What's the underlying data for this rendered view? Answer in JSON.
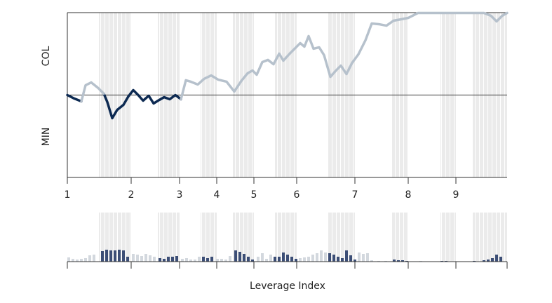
{
  "chart_data": [
    {
      "type": "line",
      "ylabel_top": "COL",
      "ylabel_bottom": "MIN",
      "x": [
        0,
        10,
        20,
        26,
        34,
        44,
        52,
        57,
        64,
        71,
        80,
        87,
        94,
        101,
        108,
        116,
        123,
        131,
        138,
        146,
        154,
        162,
        169,
        176,
        186,
        195,
        205,
        215,
        227,
        238,
        248,
        257,
        264,
        270,
        278,
        286,
        294,
        302,
        308,
        317,
        324,
        332,
        338,
        344,
        351,
        359,
        366,
        375,
        383,
        390,
        398,
        406,
        415,
        425,
        434,
        444,
        455,
        465,
        476,
        486,
        500,
        524,
        554,
        594,
        604,
        612,
        620,
        627
      ],
      "series": [
        {
          "color": "#0d2a52",
          "values": [
            0,
            -4.3,
            -7.7,
            null,
            null,
            null,
            1.7,
            -8.5,
            -28.1,
            -18.1,
            -11.9,
            -1.7,
            6.0,
            0,
            -6.8,
            -0.9,
            -10.2,
            -6.0,
            -2.6,
            -5.1,
            0,
            -5.1,
            null,
            null,
            null,
            null,
            null,
            null,
            null,
            null,
            null,
            null,
            null,
            null,
            null,
            null,
            null,
            null,
            null,
            null,
            null,
            null,
            null,
            null,
            null,
            null,
            null,
            null,
            null,
            null,
            null,
            null,
            null,
            null,
            null,
            null,
            null,
            null,
            null,
            null,
            null,
            null,
            null,
            null,
            null,
            null,
            null,
            null
          ]
        },
        {
          "color": "#b6c1cc",
          "values": [
            null,
            null,
            -7.7,
            11.9,
            15.3,
            8.5,
            1.7,
            null,
            null,
            null,
            null,
            null,
            null,
            null,
            null,
            null,
            null,
            null,
            null,
            null,
            null,
            -5.1,
            17.9,
            16.2,
            12.8,
            19.6,
            23.8,
            18.7,
            16.2,
            4.3,
            17.0,
            26.4,
            29.8,
            24.7,
            40.0,
            42.6,
            37.4,
            50.2,
            41.7,
            50.2,
            56.2,
            63.0,
            58.7,
            71.5,
            56.2,
            57.9,
            48.5,
            22.1,
            29.8,
            35.7,
            25.5,
            39.1,
            49.4,
            66.4,
            86.8,
            86.0,
            84.2,
            90.2,
            91.9,
            93.6,
            99.6,
            99.6,
            99.6,
            99.6,
            96.2,
            89.4,
            96.2,
            99.6
          ]
        }
      ],
      "xlim": [
        0,
        627
      ],
      "ylim": [
        -100,
        100
      ],
      "hline": 0,
      "xticks": [
        {
          "value": 0,
          "label": "1"
        },
        {
          "value": 91,
          "label": "2"
        },
        {
          "value": 160,
          "label": "3"
        },
        {
          "value": 213,
          "label": "4"
        },
        {
          "value": 266,
          "label": "5"
        },
        {
          "value": 327,
          "label": "6"
        },
        {
          "value": 410,
          "label": "7"
        },
        {
          "value": 486,
          "label": "8"
        },
        {
          "value": 554,
          "label": "9"
        }
      ],
      "bands": [
        [
          45,
          91
        ],
        [
          129,
          160
        ],
        [
          190,
          213
        ],
        [
          236,
          266
        ],
        [
          296,
          327
        ],
        [
          372,
          410
        ],
        [
          463,
          486
        ],
        [
          532,
          554
        ],
        [
          578,
          627
        ]
      ],
      "band_color": "#ebebeb"
    },
    {
      "type": "bar",
      "xlabel": "Leverage Index",
      "x": [
        2,
        8,
        14,
        20,
        26,
        32,
        38,
        50,
        56,
        62,
        68,
        74,
        80,
        86,
        94,
        100,
        106,
        112,
        118,
        124,
        132,
        138,
        144,
        150,
        156,
        164,
        170,
        176,
        182,
        188,
        194,
        200,
        206,
        214,
        220,
        226,
        232,
        240,
        246,
        252,
        258,
        264,
        272,
        278,
        284,
        290,
        296,
        302,
        308,
        314,
        320,
        326,
        332,
        338,
        344,
        350,
        356,
        362,
        368,
        374,
        380,
        386,
        392,
        398,
        404,
        410,
        416,
        422,
        428,
        434,
        444,
        454,
        466,
        472,
        478,
        484,
        504,
        534,
        540,
        580,
        594,
        600,
        606,
        612,
        618
      ],
      "values": [
        6,
        4,
        3,
        4,
        5,
        9,
        10,
        15,
        17,
        16,
        16,
        17,
        16,
        7,
        11,
        10,
        8,
        11,
        9,
        7,
        5,
        4,
        7,
        7,
        8,
        4,
        5,
        3,
        3,
        7,
        7,
        5,
        7,
        4,
        4,
        3,
        8,
        16,
        14,
        11,
        7,
        3,
        7,
        12,
        4,
        10,
        7,
        7,
        13,
        10,
        7,
        4,
        5,
        6,
        7,
        10,
        12,
        16,
        13,
        12,
        10,
        7,
        5,
        16,
        9,
        3,
        13,
        11,
        12,
        2,
        1,
        1,
        3,
        2,
        2,
        1,
        1,
        1,
        1,
        1,
        2,
        3,
        5,
        10,
        7
      ],
      "xlim": [
        0,
        627
      ],
      "ylim": [
        0,
        20
      ],
      "color_in_band": "#3c4e76",
      "color_out_band": "#d3d8de"
    }
  ]
}
